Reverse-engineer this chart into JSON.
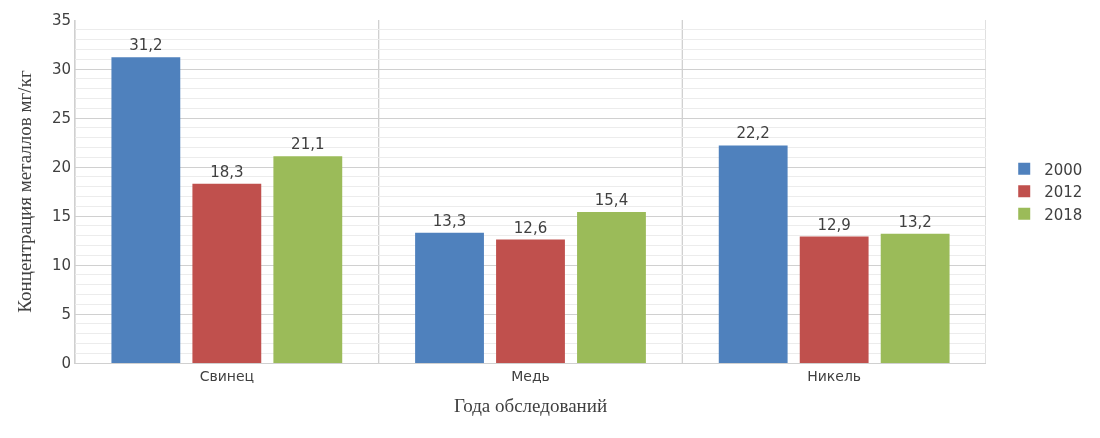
{
  "chart_data": {
    "type": "bar",
    "xlabel": "Года обследований",
    "ylabel": "Концентрация металлов мг/кг",
    "categories": [
      "Свинец",
      "Медь",
      "Никель"
    ],
    "series": [
      {
        "name": "2000",
        "color": "#4f81bd",
        "values": [
          31.2,
          13.3,
          22.2
        ],
        "value_labels": [
          "31,2",
          "13,3",
          "22,2"
        ]
      },
      {
        "name": "2012",
        "color": "#c0504d",
        "values": [
          18.3,
          12.6,
          12.9
        ],
        "value_labels": [
          "18,3",
          "12,6",
          "12,9"
        ]
      },
      {
        "name": "2018",
        "color": "#9bbb59",
        "values": [
          21.1,
          15.4,
          13.2
        ],
        "value_labels": [
          "21,1",
          "15,4",
          "13,2"
        ]
      }
    ],
    "ylim": [
      0,
      35
    ],
    "yticks": [
      0,
      5,
      10,
      15,
      20,
      25,
      30,
      35
    ],
    "grid": true,
    "legend": "right"
  }
}
